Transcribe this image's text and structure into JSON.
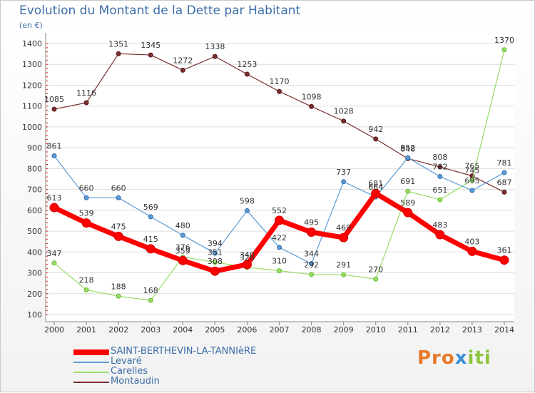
{
  "chart_data": {
    "type": "line",
    "title": "Evolution du Montant de la Dette par Habitant",
    "unit_label": "(en €)",
    "x": [
      "2000",
      "2001",
      "2002",
      "2003",
      "2004",
      "2005",
      "2006",
      "2007",
      "2008",
      "2009",
      "2010",
      "2011",
      "2012",
      "2013",
      "2014"
    ],
    "ylim": [
      100,
      1400
    ],
    "yticks": [
      100,
      200,
      300,
      400,
      500,
      600,
      700,
      800,
      900,
      1000,
      1100,
      1200,
      1300,
      1400
    ],
    "grid": "horizontal",
    "legend_position": "bottom-left",
    "series": [
      {
        "name": "SAINT-BERTHEVIN-LA-TANNIèRE",
        "color": "#ff0000",
        "point_color": "#cc0000",
        "width": 7,
        "values": [
          613,
          539,
          475,
          415,
          359,
          308,
          340,
          552,
          495,
          469,
          681,
          589,
          483,
          403,
          361
        ]
      },
      {
        "name": "Levaré",
        "color": "#5a9ad6",
        "point_color": "#2f6ead",
        "width": 1.2,
        "values": [
          861,
          660,
          660,
          569,
          480,
          394,
          598,
          422,
          344,
          737,
          664,
          852,
          762,
          695,
          781
        ]
      },
      {
        "name": "Carelles",
        "color": "#99dd66",
        "point_color": "#66bb33",
        "width": 1.2,
        "values": [
          347,
          218,
          188,
          168,
          376,
          351,
          326,
          310,
          292,
          291,
          270,
          691,
          651,
          745,
          1370
        ]
      },
      {
        "name": "Montaudin",
        "color": "#7a2e2e",
        "point_color": "#5a1a1a",
        "width": 1.2,
        "values": [
          1085,
          1116,
          1351,
          1345,
          1272,
          1338,
          1253,
          1170,
          1098,
          1028,
          942,
          848,
          808,
          765,
          687
        ]
      }
    ]
  },
  "brand": {
    "p1": "Pro",
    "p2": "x",
    "p3": "iti"
  }
}
